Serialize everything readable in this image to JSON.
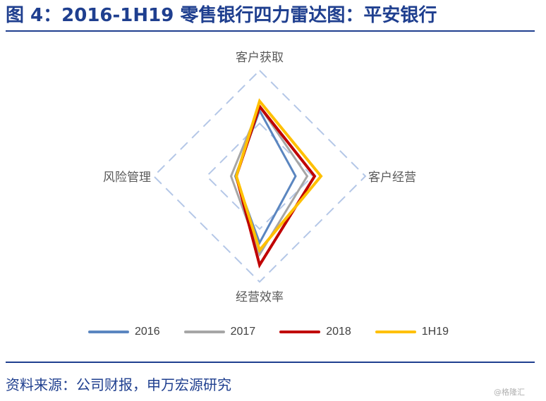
{
  "header": {
    "title": "图 4：2016-1H19 零售银行四力雷达图：平安银行"
  },
  "footer": {
    "source": "资料来源：公司财报，申万宏源研究",
    "watermark": "@格隆汇"
  },
  "colors": {
    "title": "#1f3f8f",
    "grid": "#b4c7e7",
    "series": [
      "#5b86c0",
      "#a6a6a6",
      "#c00000",
      "#ffc000"
    ]
  },
  "chart_data": {
    "type": "radar",
    "axes": [
      "客户获取",
      "客户经营",
      "经营效率",
      "风险管理"
    ],
    "rmax": 100,
    "grid_levels": [
      50,
      100
    ],
    "grid": true,
    "legend_position": "bottom",
    "series": [
      {
        "name": "2016",
        "values": [
          62,
          34,
          63,
          23
        ]
      },
      {
        "name": "2017",
        "values": [
          66,
          45,
          74,
          27
        ]
      },
      {
        "name": "2018",
        "values": [
          66,
          52,
          84,
          22
        ]
      },
      {
        "name": "1H19",
        "values": [
          71,
          58,
          70,
          22
        ]
      }
    ]
  }
}
